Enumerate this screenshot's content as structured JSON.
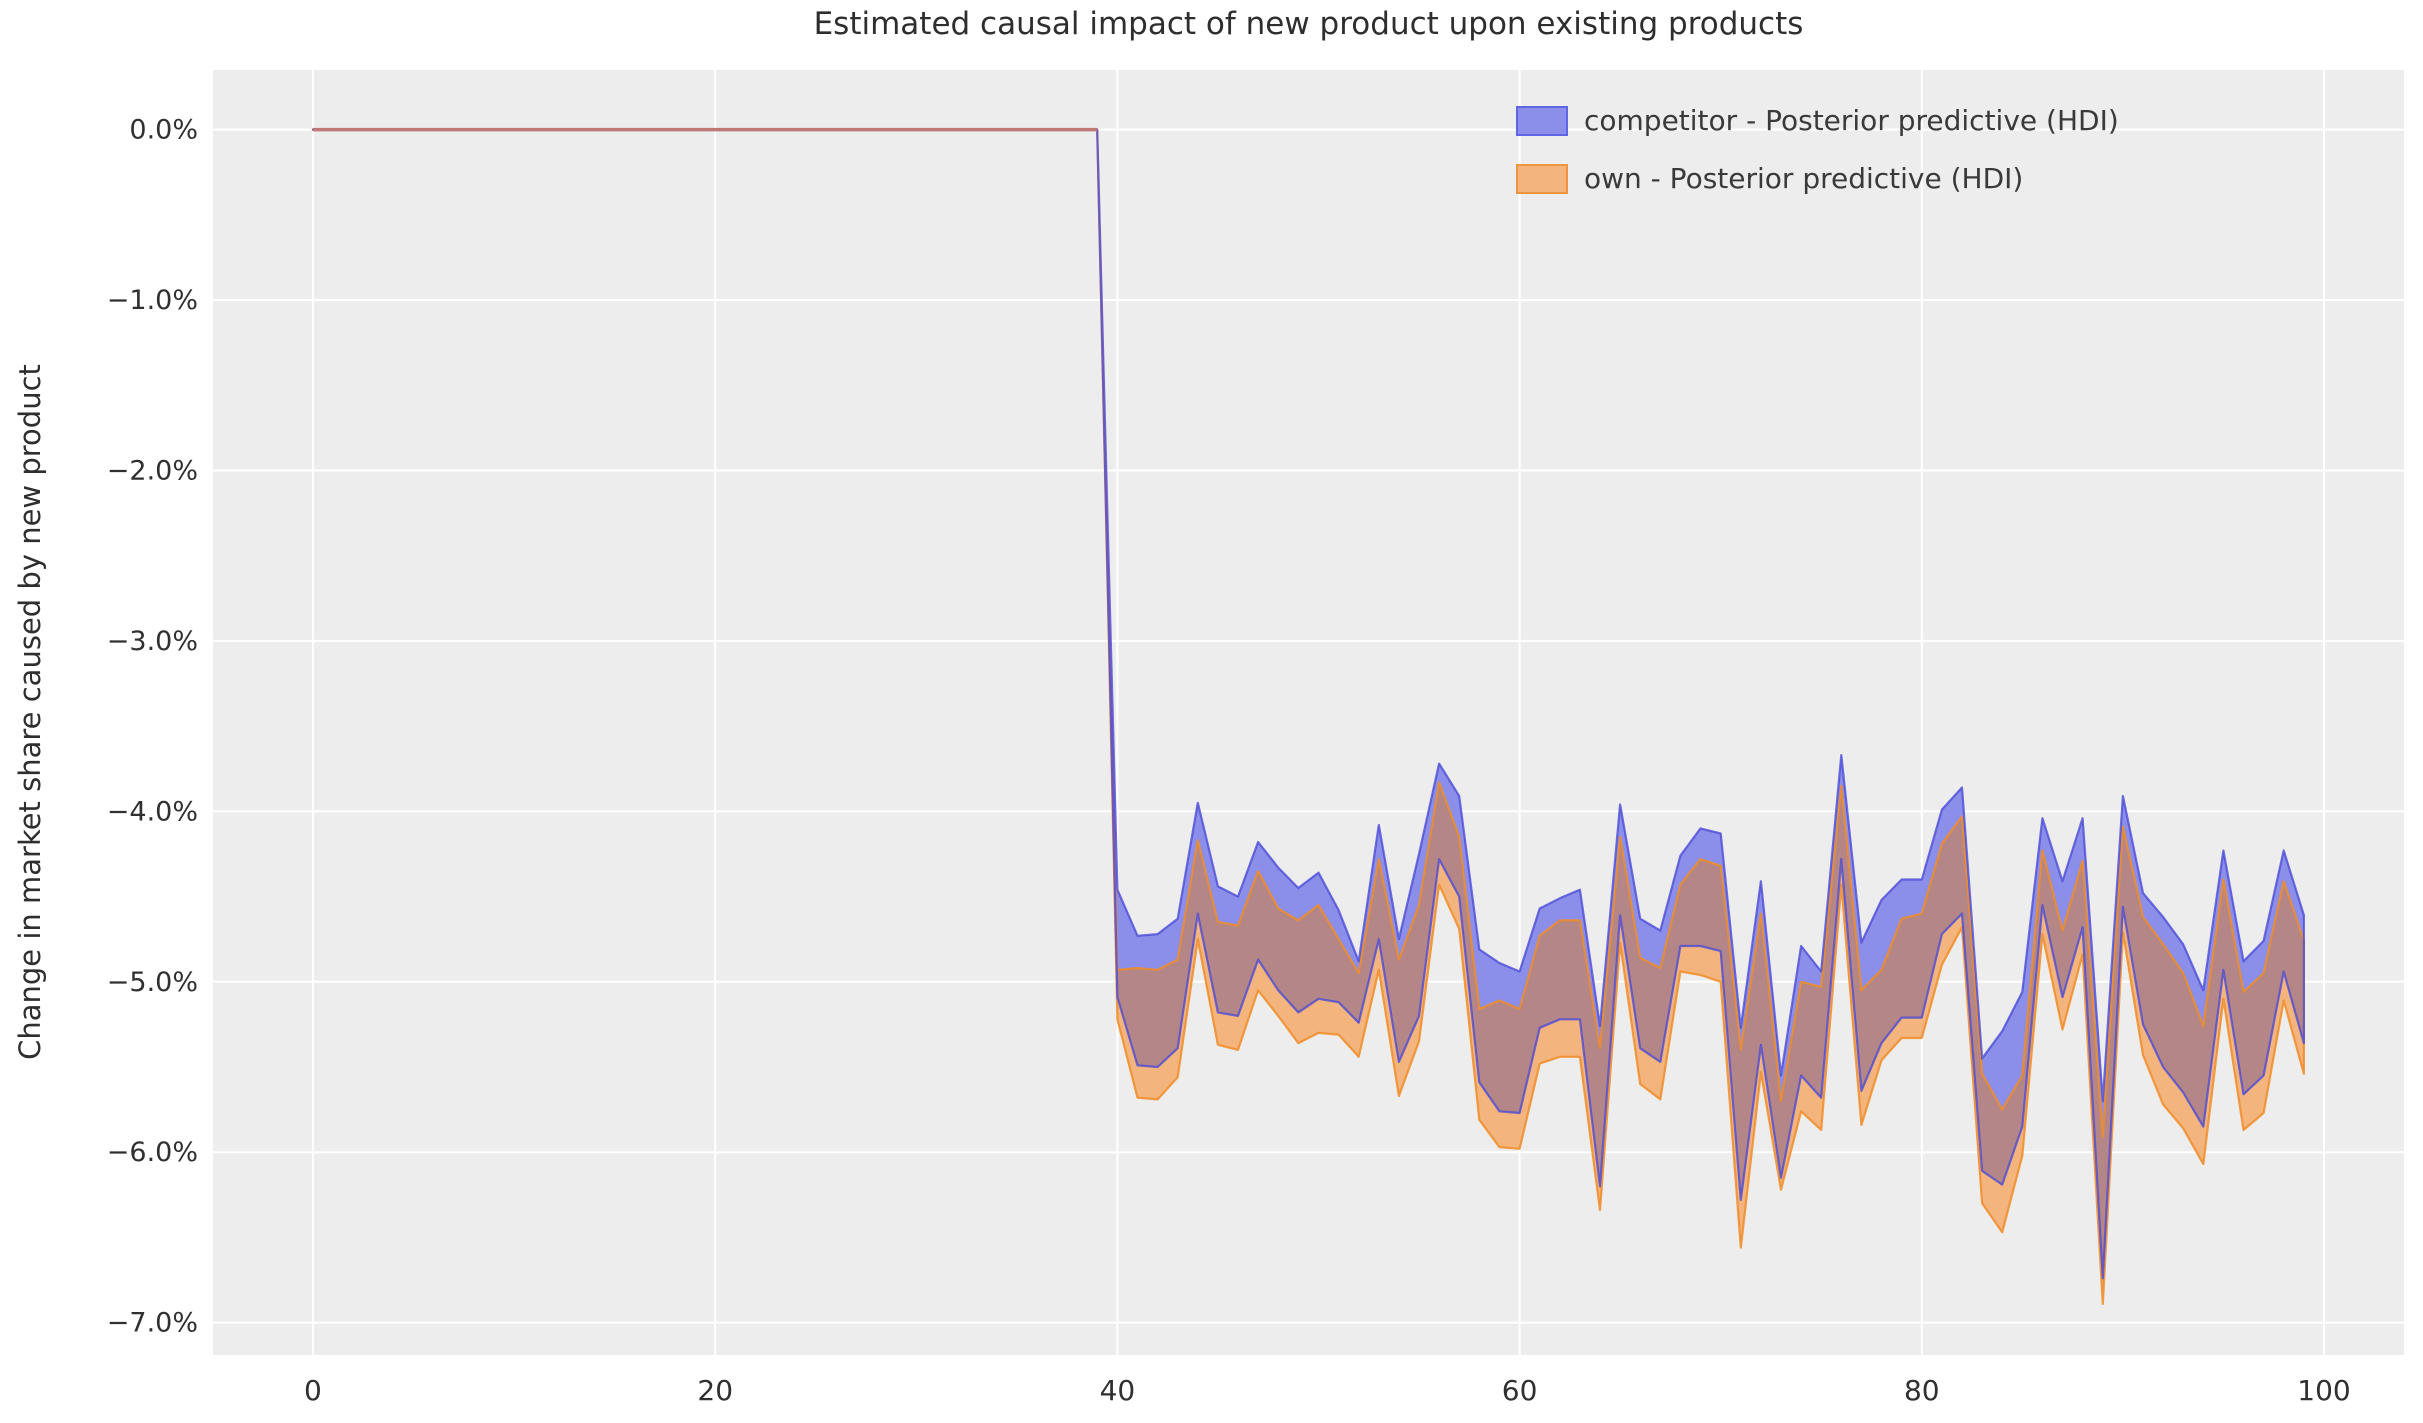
{
  "title": "Estimated causal impact of new product upon existing products",
  "ylabel": "Change in market share caused by new product",
  "legend": {
    "items": [
      {
        "label": "competitor - Posterior predictive (HDI)",
        "fill": "#8c8fe9",
        "edge": "#6065e2"
      },
      {
        "label": "own - Posterior predictive (HDI)",
        "fill": "#f3b47d",
        "edge": "#f0953f"
      }
    ],
    "position": "upper right"
  },
  "chart_data": {
    "type": "area",
    "title": "Estimated causal impact of new product upon existing products",
    "xlabel": "",
    "ylabel": "Change in market share caused by new product",
    "grid": true,
    "axes_bg": "#ededed",
    "gridline_color": "#ffffff",
    "xlim": [
      -4.97,
      103.98
    ],
    "ylim": [
      -7.19,
      0.35
    ],
    "x_ticks": [
      0,
      20,
      40,
      60,
      80,
      100
    ],
    "x_tick_labels": [
      "0",
      "20",
      "40",
      "60",
      "80",
      "100"
    ],
    "y_ticks": [
      0,
      -1,
      -2,
      -3,
      -4,
      -5,
      -6,
      -7
    ],
    "y_tick_labels": [
      "0.0%",
      "−1.0%",
      "−2.0%",
      "−3.0%",
      "−4.0%",
      "−5.0%",
      "−6.0%",
      "−7.0%"
    ],
    "pre_period": {
      "x_start": 0,
      "x_end": 39,
      "value": 0.0,
      "note": "both HDI bands collapse to ~0% before the intervention",
      "line_color": "#bf7877"
    },
    "post_x": [
      40,
      41,
      42,
      43,
      44,
      45,
      46,
      47,
      48,
      49,
      50,
      51,
      52,
      53,
      54,
      55,
      56,
      57,
      58,
      59,
      60,
      61,
      62,
      63,
      64,
      65,
      66,
      67,
      68,
      69,
      70,
      71,
      72,
      73,
      74,
      75,
      76,
      77,
      78,
      79,
      80,
      81,
      82,
      83,
      84,
      85,
      86,
      87,
      88,
      89,
      90,
      91,
      92,
      93,
      94,
      95,
      96,
      97,
      98,
      99
    ],
    "series": [
      {
        "name": "competitor - Posterior predictive (HDI)",
        "fill": "#8c8fe9",
        "edge": "rgba(75,75,215,0.8)",
        "upper": [
          -4.46,
          -4.73,
          -4.72,
          -4.63,
          -3.95,
          -4.44,
          -4.5,
          -4.18,
          -4.33,
          -4.45,
          -4.36,
          -4.58,
          -4.88,
          -4.08,
          -4.75,
          -4.25,
          -3.72,
          -3.91,
          -4.81,
          -4.89,
          -4.94,
          -4.57,
          -4.51,
          -4.46,
          -5.26,
          -3.96,
          -4.63,
          -4.7,
          -4.26,
          -4.1,
          -4.13,
          -5.27,
          -4.41,
          -5.55,
          -4.79,
          -4.94,
          -3.67,
          -4.77,
          -4.52,
          -4.4,
          -4.4,
          -3.99,
          -3.86,
          -5.45,
          -5.29,
          -5.06,
          -4.04,
          -4.41,
          -4.04,
          -5.7,
          -3.91,
          -4.48,
          -4.62,
          -4.78,
          -5.05,
          -4.23,
          -4.88,
          -4.76,
          -4.23,
          -4.61
        ],
        "lower": [
          -5.09,
          -5.49,
          -5.5,
          -5.39,
          -4.6,
          -5.18,
          -5.2,
          -4.87,
          -5.05,
          -5.18,
          -5.1,
          -5.12,
          -5.24,
          -4.75,
          -5.47,
          -5.2,
          -4.28,
          -4.5,
          -5.59,
          -5.76,
          -5.77,
          -5.27,
          -5.22,
          -5.22,
          -6.2,
          -4.61,
          -5.39,
          -5.47,
          -4.79,
          -4.79,
          -4.82,
          -6.28,
          -5.37,
          -6.15,
          -5.55,
          -5.68,
          -4.28,
          -5.64,
          -5.36,
          -5.21,
          -5.21,
          -4.72,
          -4.6,
          -6.11,
          -6.19,
          -5.85,
          -4.55,
          -5.09,
          -4.68,
          -6.74,
          -4.56,
          -5.25,
          -5.5,
          -5.65,
          -5.85,
          -4.93,
          -5.66,
          -5.55,
          -4.94,
          -5.36
        ]
      },
      {
        "name": "own - Posterior predictive (HDI)",
        "fill": "#f3b47d",
        "edge": "rgba(240,140,40,0.85)",
        "upper": [
          -4.93,
          -4.92,
          -4.93,
          -4.87,
          -4.17,
          -4.65,
          -4.67,
          -4.35,
          -4.57,
          -4.64,
          -4.55,
          -4.75,
          -4.95,
          -4.28,
          -4.87,
          -4.55,
          -3.83,
          -4.15,
          -5.16,
          -5.11,
          -5.16,
          -4.73,
          -4.64,
          -4.64,
          -5.39,
          -4.15,
          -4.86,
          -4.92,
          -4.43,
          -4.28,
          -4.32,
          -5.4,
          -4.6,
          -5.7,
          -5.0,
          -5.03,
          -3.85,
          -5.05,
          -4.93,
          -4.63,
          -4.6,
          -4.19,
          -4.03,
          -5.54,
          -5.75,
          -5.55,
          -4.23,
          -4.7,
          -4.29,
          -5.91,
          -4.09,
          -4.62,
          -4.78,
          -4.95,
          -5.26,
          -4.4,
          -5.06,
          -4.95,
          -4.41,
          -4.76
        ],
        "lower": [
          -5.22,
          -5.68,
          -5.69,
          -5.56,
          -4.75,
          -5.37,
          -5.4,
          -5.05,
          -5.2,
          -5.36,
          -5.3,
          -5.31,
          -5.44,
          -4.93,
          -5.67,
          -5.35,
          -4.43,
          -4.69,
          -5.81,
          -5.97,
          -5.98,
          -5.48,
          -5.44,
          -5.44,
          -6.34,
          -4.77,
          -5.6,
          -5.69,
          -4.94,
          -4.96,
          -5.0,
          -6.56,
          -5.53,
          -6.22,
          -5.76,
          -5.87,
          -4.43,
          -5.84,
          -5.46,
          -5.33,
          -5.33,
          -4.9,
          -4.68,
          -6.3,
          -6.47,
          -6.02,
          -4.72,
          -5.28,
          -4.84,
          -6.89,
          -4.71,
          -5.43,
          -5.72,
          -5.86,
          -6.07,
          -5.1,
          -5.87,
          -5.77,
          -5.11,
          -5.54
        ]
      }
    ],
    "overlap_fill": "#b48687",
    "legend_position": "upper right"
  }
}
